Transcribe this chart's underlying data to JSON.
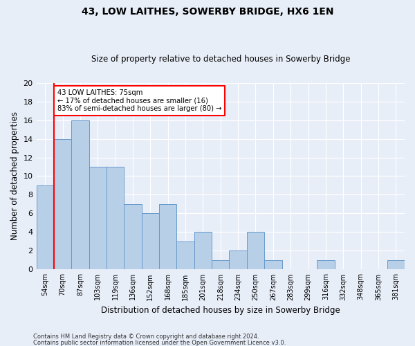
{
  "title": "43, LOW LAITHES, SOWERBY BRIDGE, HX6 1EN",
  "subtitle": "Size of property relative to detached houses in Sowerby Bridge",
  "xlabel": "Distribution of detached houses by size in Sowerby Bridge",
  "ylabel": "Number of detached properties",
  "bar_values": [
    9,
    14,
    16,
    11,
    11,
    7,
    6,
    7,
    3,
    4,
    1,
    2,
    4,
    1,
    0,
    0,
    1,
    0,
    0,
    0,
    1
  ],
  "all_labels": [
    "54sqm",
    "70sqm",
    "87sqm",
    "103sqm",
    "119sqm",
    "136sqm",
    "152sqm",
    "168sqm",
    "185sqm",
    "201sqm",
    "218sqm",
    "234sqm",
    "250sqm",
    "267sqm",
    "283sqm",
    "299sqm",
    "316sqm",
    "332sqm",
    "348sqm",
    "365sqm",
    "381sqm"
  ],
  "bar_color": "#b8cfe8",
  "bar_edge_color": "#6699cc",
  "vline_color": "red",
  "ylim": [
    0,
    20
  ],
  "yticks": [
    0,
    2,
    4,
    6,
    8,
    10,
    12,
    14,
    16,
    18,
    20
  ],
  "annotation_title": "43 LOW LAITHES: 75sqm",
  "annotation_line1": "← 17% of detached houses are smaller (16)",
  "annotation_line2": "83% of semi-detached houses are larger (80) →",
  "footer1": "Contains HM Land Registry data © Crown copyright and database right 2024.",
  "footer2": "Contains public sector information licensed under the Open Government Licence v3.0.",
  "bg_color": "#e8eef8",
  "plot_bg_color": "#e8eef8"
}
